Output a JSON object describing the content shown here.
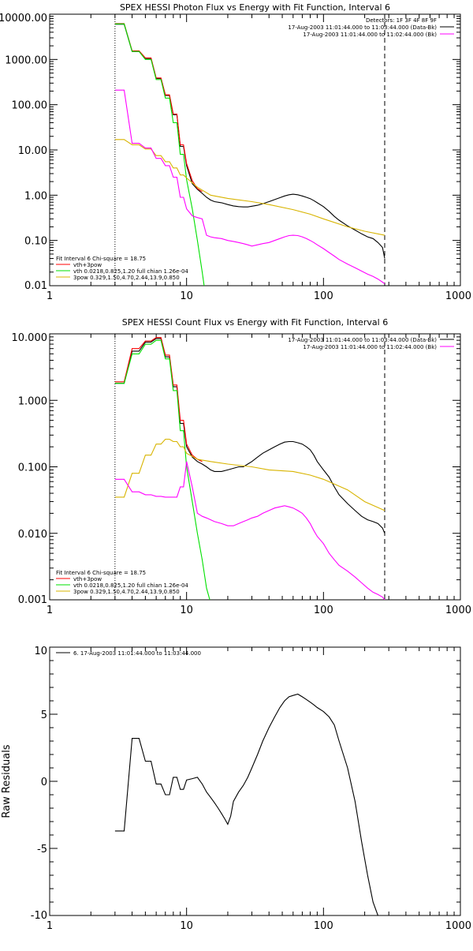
{
  "colors": {
    "black": "#000000",
    "red": "#ff0000",
    "green": "#00e000",
    "magenta": "#ff00ff",
    "yellow": "#d8b400"
  },
  "chart_data": [
    {
      "id": "photon",
      "type": "line",
      "title": "SPEX HESSI Photon Flux vs Energy with Fit Function, Interval 6",
      "xscale": "log",
      "yscale": "log",
      "xlim": [
        1,
        1000
      ],
      "ylim": [
        0.01,
        10000
      ],
      "xticks": [
        1,
        10,
        100,
        1000
      ],
      "xtick_labels": [
        "1",
        "10",
        "100",
        "1000"
      ],
      "yticks": [
        0.01,
        0.1,
        1,
        10,
        100,
        1000,
        10000
      ],
      "ytick_labels": [
        "0.01",
        "0.10",
        "1.00",
        "10.00",
        "100.00",
        "1000.00",
        "10000.00"
      ],
      "xlabel": "",
      "ylabel": "",
      "vlines": [
        {
          "x": 3,
          "style": "dotted",
          "color": "#000000"
        },
        {
          "x": 280,
          "style": "dashed",
          "color": "#000000"
        }
      ],
      "legend_top": {
        "placement": "top-right",
        "lines": [
          {
            "text": "Detectors: 1F 3F 4F 8F 9F",
            "color": ""
          },
          {
            "text": "17-Aug-2003 11:01:44.000 to 11:03:44.000 (Data-Bk)",
            "color": "#000000"
          },
          {
            "text": "17-Aug-2003 11:01:44.000 to 11:02:44.000 (Bk)",
            "color": "#ff00ff"
          }
        ]
      },
      "legend_bottom": {
        "placement": "bottom-left",
        "lines": [
          {
            "text": "Fit Interval 6    Chi-square = 18.75",
            "color": ""
          },
          {
            "text": "vth+3pow",
            "color": "#ff0000"
          },
          {
            "text": "vth 0.0218,0.825,1.20  full chian 1.26e-04",
            "color": "#00e000"
          },
          {
            "text": "3pow 0.329,1.50,4.70,2.44,13.9,0.850",
            "color": "#d8b400"
          }
        ]
      },
      "series": [
        {
          "color": "#000000",
          "x": [
            3,
            3.5,
            4,
            4.5,
            5,
            5.5,
            6,
            6.5,
            7,
            7.5,
            8,
            8.5,
            9,
            9.5,
            10,
            11,
            12,
            13,
            14,
            15,
            16,
            18,
            20,
            22,
            24,
            26,
            28,
            30,
            33,
            36,
            40,
            44,
            48,
            52,
            56,
            60,
            65,
            70,
            75,
            80,
            85,
            90,
            100,
            110,
            120,
            130,
            150,
            170,
            190,
            210,
            230,
            250,
            270,
            280
          ],
          "y": [
            6000,
            6000,
            1500,
            1500,
            1050,
            1050,
            380,
            380,
            160,
            160,
            60,
            60,
            12,
            12,
            4.5,
            1.8,
            1.35,
            1.1,
            0.9,
            0.78,
            0.72,
            0.68,
            0.62,
            0.58,
            0.56,
            0.55,
            0.55,
            0.57,
            0.6,
            0.65,
            0.72,
            0.8,
            0.88,
            0.96,
            1.02,
            1.05,
            1.02,
            0.96,
            0.9,
            0.84,
            0.76,
            0.68,
            0.56,
            0.44,
            0.34,
            0.28,
            0.21,
            0.17,
            0.14,
            0.12,
            0.11,
            0.09,
            0.07,
            0.04
          ]
        },
        {
          "color": "#ff0000",
          "x": [
            3,
            3.5,
            4,
            4.5,
            5,
            5.5,
            6,
            6.5,
            7,
            7.5,
            8,
            8.5,
            9,
            9.5,
            10,
            11,
            12,
            13
          ],
          "y": [
            6200,
            6200,
            1550,
            1550,
            1080,
            1080,
            390,
            390,
            165,
            165,
            62,
            62,
            13,
            13,
            5,
            2.1,
            1.4,
            1.2
          ]
        },
        {
          "color": "#00e000",
          "x": [
            3,
            3.5,
            4,
            4.5,
            5,
            5.5,
            6,
            6.5,
            7,
            7.5,
            8,
            8.5,
            9,
            9.5,
            10,
            11,
            12,
            13,
            13.5
          ],
          "y": [
            6100,
            6100,
            1500,
            1500,
            1000,
            1000,
            360,
            360,
            140,
            140,
            40,
            40,
            8,
            8,
            2.2,
            0.5,
            0.1,
            0.02,
            0.009
          ]
        },
        {
          "color": "#d8b400",
          "x": [
            3,
            3.5,
            4,
            4.5,
            5,
            5.5,
            6,
            6.5,
            7,
            7.5,
            8,
            8.5,
            9,
            9.5,
            10,
            12,
            15,
            20,
            30,
            40,
            60,
            80,
            100,
            150,
            200,
            280
          ],
          "y": [
            17,
            17,
            13,
            13,
            10.5,
            10.5,
            7.5,
            7.5,
            5.5,
            5.5,
            4,
            4,
            2.8,
            2.8,
            2.4,
            1.5,
            1.0,
            0.85,
            0.72,
            0.62,
            0.48,
            0.38,
            0.3,
            0.2,
            0.16,
            0.13
          ]
        },
        {
          "color": "#ff00ff",
          "x": [
            3,
            3.5,
            4,
            4.5,
            5,
            5.5,
            6,
            6.5,
            7,
            7.5,
            8,
            8.5,
            9,
            9.5,
            10,
            11,
            12,
            13,
            14,
            15,
            16,
            18,
            20,
            22,
            24,
            26,
            28,
            30,
            33,
            36,
            40,
            44,
            48,
            52,
            56,
            60,
            65,
            70,
            75,
            80,
            85,
            90,
            100,
            110,
            120,
            130,
            150,
            170,
            190,
            210,
            230,
            250,
            270,
            280
          ],
          "y": [
            210,
            210,
            14,
            14,
            11,
            11,
            6.5,
            6.5,
            4.5,
            4.5,
            2.5,
            2.5,
            0.9,
            0.9,
            0.5,
            0.35,
            0.32,
            0.3,
            0.13,
            0.12,
            0.115,
            0.11,
            0.1,
            0.095,
            0.09,
            0.085,
            0.08,
            0.075,
            0.08,
            0.085,
            0.09,
            0.1,
            0.11,
            0.12,
            0.128,
            0.13,
            0.128,
            0.12,
            0.11,
            0.1,
            0.09,
            0.08,
            0.066,
            0.054,
            0.045,
            0.038,
            0.03,
            0.025,
            0.021,
            0.018,
            0.016,
            0.014,
            0.012,
            0.011
          ]
        }
      ]
    },
    {
      "id": "count",
      "type": "line",
      "title": "SPEX HESSI Count Flux vs Energy with Fit Function, Interval 6",
      "xscale": "log",
      "yscale": "log",
      "xlim": [
        1,
        1000
      ],
      "ylim": [
        0.001,
        10
      ],
      "xticks": [
        1,
        10,
        100,
        1000
      ],
      "xtick_labels": [
        "1",
        "10",
        "100",
        "1000"
      ],
      "yticks": [
        0.001,
        0.01,
        0.1,
        1,
        10
      ],
      "ytick_labels": [
        "0.001",
        "0.010",
        "0.100",
        "1.000",
        "10.000"
      ],
      "xlabel": "",
      "ylabel": "",
      "vlines": [
        {
          "x": 3,
          "style": "dotted",
          "color": "#000000"
        },
        {
          "x": 280,
          "style": "dashed",
          "color": "#000000"
        }
      ],
      "legend_top": {
        "placement": "top-right",
        "lines": [
          {
            "text": "17-Aug-2003 11:01:44.000 to 11:03:44.000 (Data-Bk)",
            "color": "#000000"
          },
          {
            "text": "17-Aug-2003 11:01:44.000 to 11:02:44.000 (Bk)",
            "color": "#ff00ff"
          }
        ]
      },
      "legend_bottom": {
        "placement": "bottom-left",
        "lines": [
          {
            "text": "Fit Interval 6    Chi-square = 18.75",
            "color": ""
          },
          {
            "text": "vth+3pow",
            "color": "#ff0000"
          },
          {
            "text": "vth 0.0218,0.825,1.20  full chian 1.26e-04",
            "color": "#00e000"
          },
          {
            "text": "3pow 0.329,1.50,4.70,2.44,13.9,0.850",
            "color": "#d8b400"
          }
        ]
      },
      "series": [
        {
          "color": "#000000",
          "x": [
            3,
            3.5,
            4,
            4.5,
            5,
            5.5,
            6,
            6.5,
            7,
            7.5,
            8,
            8.5,
            9,
            9.5,
            10,
            11,
            12,
            13,
            14,
            15,
            16,
            18,
            20,
            22,
            24,
            26,
            28,
            30,
            33,
            36,
            40,
            44,
            48,
            52,
            56,
            60,
            65,
            70,
            75,
            80,
            85,
            90,
            100,
            110,
            120,
            130,
            150,
            170,
            190,
            210,
            230,
            250,
            270,
            280
          ],
          "y": [
            1.8,
            1.8,
            5.5,
            5.5,
            7.5,
            7.5,
            8.5,
            8.5,
            4.5,
            4.5,
            1.6,
            1.6,
            0.45,
            0.45,
            0.2,
            0.14,
            0.12,
            0.11,
            0.1,
            0.09,
            0.085,
            0.085,
            0.09,
            0.095,
            0.1,
            0.1,
            0.11,
            0.12,
            0.14,
            0.16,
            0.18,
            0.2,
            0.22,
            0.235,
            0.24,
            0.24,
            0.23,
            0.22,
            0.2,
            0.18,
            0.15,
            0.12,
            0.09,
            0.07,
            0.05,
            0.038,
            0.028,
            0.022,
            0.018,
            0.016,
            0.015,
            0.014,
            0.012,
            0.01
          ]
        },
        {
          "color": "#ff0000",
          "x": [
            3,
            3.5,
            4,
            4.5,
            5,
            5.5,
            6,
            6.5,
            7,
            7.5,
            8,
            8.5,
            9,
            9.5,
            10,
            11,
            12,
            13
          ],
          "y": [
            1.9,
            1.9,
            6,
            6,
            7.8,
            7.8,
            8.8,
            8.8,
            4.8,
            4.8,
            1.7,
            1.7,
            0.5,
            0.5,
            0.22,
            0.15,
            0.13,
            0.12
          ]
        },
        {
          "color": "#00e000",
          "x": [
            3,
            3.5,
            4,
            4.5,
            5,
            5.5,
            6,
            6.5,
            7,
            7.5,
            8,
            8.5,
            9,
            9.5,
            10,
            11,
            12,
            13,
            14,
            15
          ],
          "y": [
            1.8,
            1.8,
            5,
            5,
            7,
            7,
            8,
            8,
            4.2,
            4.2,
            1.4,
            1.4,
            0.35,
            0.35,
            0.1,
            0.03,
            0.01,
            0.004,
            0.0015,
            0.0009
          ]
        },
        {
          "color": "#d8b400",
          "x": [
            3,
            3.5,
            4,
            4.5,
            5,
            5.5,
            6,
            6.5,
            7,
            7.5,
            8,
            8.5,
            9,
            9.5,
            10,
            12,
            15,
            20,
            30,
            40,
            60,
            80,
            100,
            150,
            200,
            280
          ],
          "y": [
            0.035,
            0.035,
            0.08,
            0.08,
            0.15,
            0.15,
            0.22,
            0.22,
            0.26,
            0.26,
            0.24,
            0.24,
            0.2,
            0.2,
            0.16,
            0.13,
            0.12,
            0.11,
            0.1,
            0.09,
            0.085,
            0.075,
            0.065,
            0.045,
            0.03,
            0.022
          ]
        },
        {
          "color": "#ff00ff",
          "x": [
            3,
            3.5,
            4,
            4.5,
            5,
            5.5,
            6,
            6.5,
            7,
            7.5,
            8,
            8.5,
            9,
            9.5,
            10,
            11,
            12,
            13,
            14,
            15,
            16,
            18,
            20,
            22,
            24,
            26,
            28,
            30,
            33,
            36,
            40,
            44,
            48,
            52,
            56,
            60,
            65,
            70,
            75,
            80,
            85,
            90,
            100,
            110,
            120,
            130,
            150,
            170,
            190,
            210,
            230,
            250,
            270,
            280
          ],
          "y": [
            0.065,
            0.065,
            0.042,
            0.042,
            0.038,
            0.038,
            0.036,
            0.036,
            0.035,
            0.035,
            0.035,
            0.035,
            0.05,
            0.05,
            0.12,
            0.05,
            0.02,
            0.018,
            0.017,
            0.016,
            0.015,
            0.014,
            0.013,
            0.013,
            0.014,
            0.015,
            0.016,
            0.017,
            0.018,
            0.02,
            0.022,
            0.024,
            0.025,
            0.026,
            0.025,
            0.024,
            0.022,
            0.02,
            0.017,
            0.014,
            0.011,
            0.009,
            0.007,
            0.005,
            0.004,
            0.0033,
            0.0027,
            0.0022,
            0.0018,
            0.0015,
            0.0013,
            0.0012,
            0.0011,
            0.001
          ]
        }
      ]
    },
    {
      "id": "residuals",
      "type": "line",
      "title": "",
      "xscale": "log",
      "yscale": "linear",
      "xlim": [
        1,
        1000
      ],
      "ylim": [
        -10,
        10
      ],
      "xticks": [
        1,
        10,
        100,
        1000
      ],
      "xtick_labels": [
        "1",
        "10",
        "100",
        "1000"
      ],
      "yticks": [
        -10,
        -5,
        0,
        5,
        10
      ],
      "ytick_labels": [
        "-10",
        "-5",
        "0",
        "5",
        "10"
      ],
      "xlabel": "",
      "ylabel": "Raw Residuals",
      "vlines": [],
      "legend_top": {
        "placement": "top-left",
        "lines": [
          {
            "text": "6. 17-Aug-2003 11:01:44.000 to 11:03:44.000",
            "color": "#000000"
          }
        ]
      },
      "legend_bottom": {
        "placement": "",
        "lines": []
      },
      "series": [
        {
          "color": "#000000",
          "x": [
            3,
            3.5,
            4,
            4.5,
            5,
            5.5,
            6,
            6.5,
            7,
            7.5,
            8,
            8.5,
            9,
            9.5,
            10,
            11,
            12,
            13,
            14,
            15,
            16,
            17,
            18,
            19,
            20,
            21,
            22,
            24,
            26,
            28,
            30,
            33,
            36,
            40,
            44,
            48,
            52,
            56,
            60,
            65,
            70,
            75,
            80,
            85,
            90,
            100,
            110,
            120,
            130,
            150,
            170,
            190,
            210,
            230,
            250,
            270,
            280
          ],
          "y": [
            -3.7,
            -3.7,
            3.2,
            3.2,
            1.5,
            1.5,
            -0.2,
            -0.2,
            -1.0,
            -1.0,
            0.3,
            0.3,
            -0.6,
            -0.6,
            0.1,
            0.2,
            0.3,
            -0.2,
            -0.8,
            -1.2,
            -1.6,
            -2.0,
            -2.4,
            -2.8,
            -3.2,
            -2.6,
            -1.5,
            -0.8,
            -0.3,
            0.3,
            1.0,
            2.0,
            3.0,
            4.0,
            4.8,
            5.5,
            6.0,
            6.3,
            6.4,
            6.5,
            6.3,
            6.1,
            5.9,
            5.7,
            5.5,
            5.2,
            4.8,
            4.2,
            3.0,
            1.0,
            -1.5,
            -4.5,
            -7.0,
            -9.0,
            -10,
            -10,
            -10
          ]
        }
      ]
    }
  ]
}
